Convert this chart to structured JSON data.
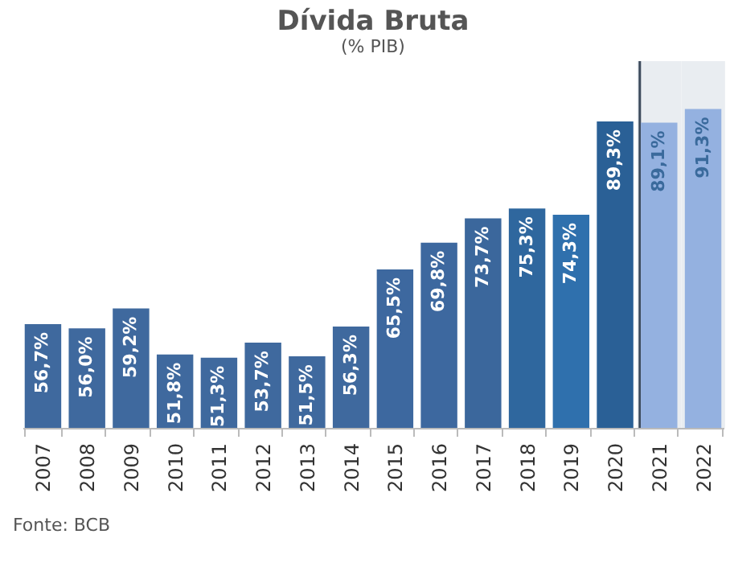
{
  "chart_data": {
    "type": "bar",
    "title": "Dívida Bruta",
    "subtitle": "(% PIB)",
    "categories": [
      "2007",
      "2008",
      "2009",
      "2010",
      "2011",
      "2012",
      "2013",
      "2014",
      "2015",
      "2016",
      "2017",
      "2018",
      "2019",
      "2020",
      "2021",
      "2022"
    ],
    "values": [
      56.7,
      56.0,
      59.2,
      51.8,
      51.3,
      53.7,
      51.5,
      56.3,
      65.5,
      69.8,
      73.7,
      75.3,
      74.3,
      89.3,
      89.1,
      91.3
    ],
    "value_labels": [
      "56,7%",
      "56,0%",
      "59,2%",
      "51,8%",
      "51,3%",
      "53,7%",
      "51,5%",
      "56,3%",
      "65,5%",
      "69,8%",
      "73,7%",
      "75,3%",
      "74,3%",
      "89,3%",
      "89,1%",
      "91,3%"
    ],
    "colors": [
      "#3f699e",
      "#3f699e",
      "#3f699e",
      "#3f699e",
      "#3f699e",
      "#3f699e",
      "#3f699e",
      "#3f699e",
      "#3d689f",
      "#3d689f",
      "#3b679c",
      "#2f679e",
      "#2f70ad",
      "#2a6096",
      "#94b1e0",
      "#94b1e0"
    ],
    "ylim": [
      40,
      99
    ],
    "bands": [
      {
        "axis": "x",
        "from": "2021",
        "to": "2022",
        "color": "#e9edf1"
      }
    ],
    "annotations": [
      "Fonte: BCB"
    ]
  }
}
